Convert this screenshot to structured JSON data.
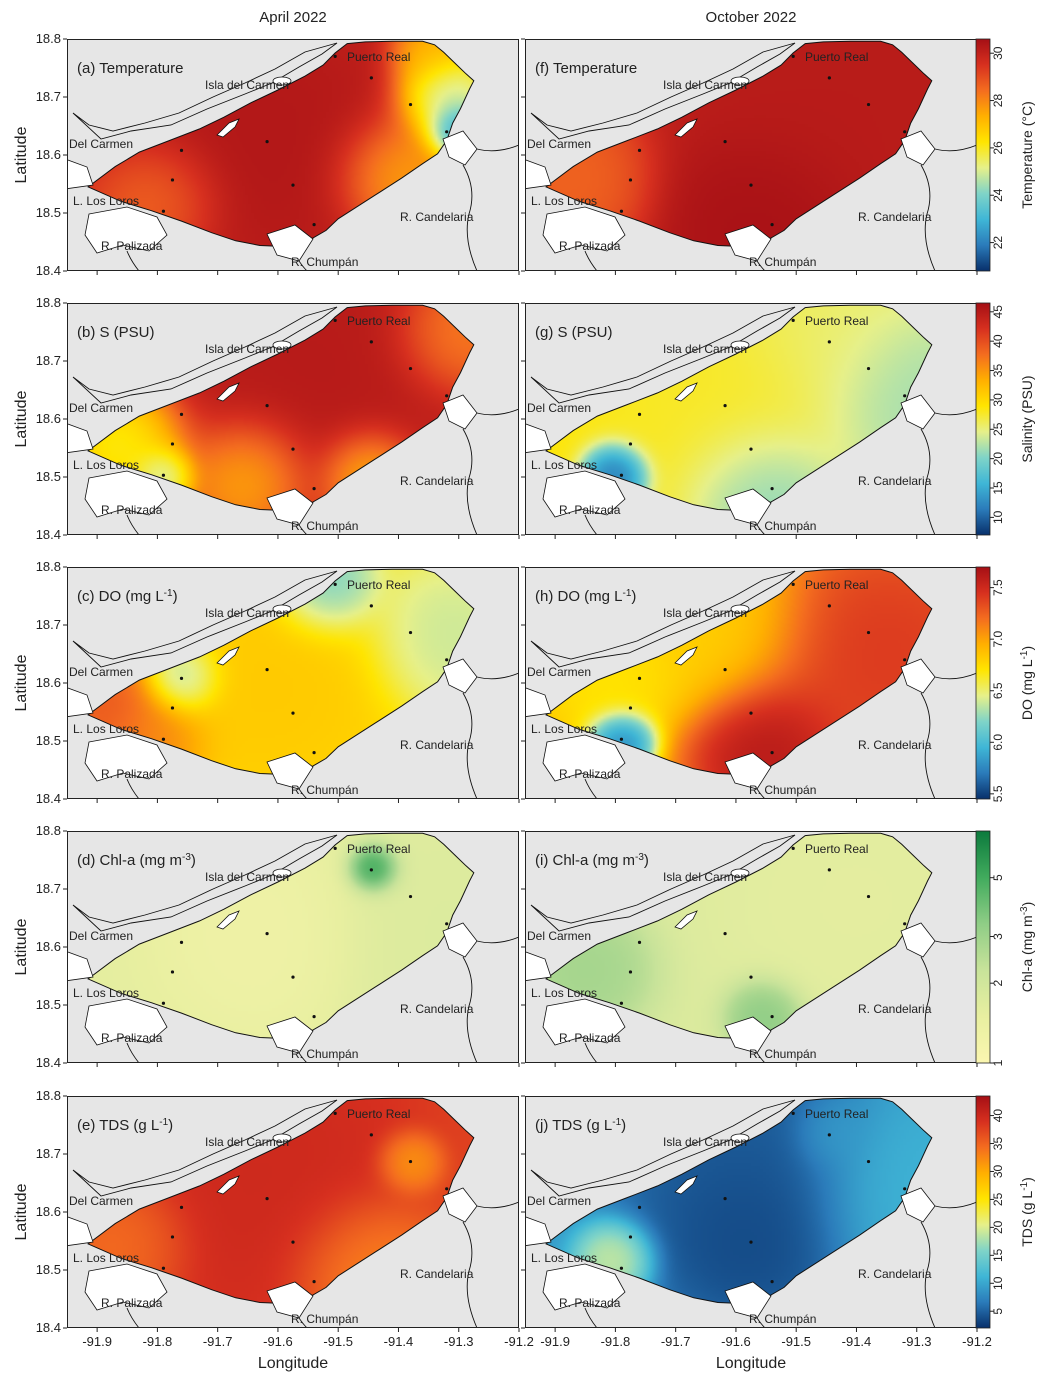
{
  "columns": [
    "April 2022",
    "October 2022"
  ],
  "axes": {
    "xlabel": "Longitude",
    "ylabel": "Latitude",
    "lon_ticks": [
      "-91.9",
      "-91.8",
      "-91.7",
      "-91.6",
      "-91.5",
      "-91.4",
      "-91.3",
      "-91.2"
    ],
    "lat_ticks": [
      "18.8",
      "18.7",
      "18.6",
      "18.5",
      "18.4"
    ]
  },
  "places": [
    "Puerto Real",
    "Isla del Carmen",
    "Del Carmen",
    "L. Los Loros",
    "R. Palizada",
    "R. Chumpán",
    "R. Candelaria"
  ],
  "rows": [
    {
      "variable": "Temperature",
      "panels": [
        {
          "prefix": "(a) ",
          "name": "Temperature",
          "sup": ""
        },
        {
          "prefix": "(f) ",
          "name": "Temperature",
          "sup": ""
        }
      ],
      "colorbar": {
        "label": "Temperature (°C)",
        "ticks": [
          "22",
          "24",
          "26",
          "28",
          "30"
        ],
        "min": 20.8,
        "max": 30.6,
        "palette": "spectral"
      }
    },
    {
      "variable": "Salinity",
      "panels": [
        {
          "prefix": "(b) ",
          "name": "S (PSU)",
          "sup": ""
        },
        {
          "prefix": "(g) ",
          "name": "S (PSU)",
          "sup": ""
        }
      ],
      "colorbar": {
        "label": "Salinity (PSU)",
        "ticks": [
          "10",
          "15",
          "20",
          "25",
          "30",
          "35",
          "40",
          "45"
        ],
        "min": 7,
        "max": 46.5,
        "palette": "spectral"
      }
    },
    {
      "variable": "DO",
      "panels": [
        {
          "prefix": "(c) ",
          "name": "DO (mg L",
          "sup": "-1",
          "suffix": ")"
        },
        {
          "prefix": "(h) ",
          "name": "DO (mg L",
          "sup": "-1",
          "suffix": ")"
        }
      ],
      "colorbar": {
        "label": "DO (mg L",
        "label_sup": "-1",
        "label_suffix": ")",
        "ticks": [
          "5.5",
          "6.0",
          "6.5",
          "7.0",
          "7.5"
        ],
        "min": 5.45,
        "max": 7.7,
        "palette": "spectral"
      }
    },
    {
      "variable": "Chl-a",
      "panels": [
        {
          "prefix": "(d) ",
          "name": "Chl-a (mg m",
          "sup": "-3",
          "suffix": ")"
        },
        {
          "prefix": "(i) ",
          "name": "Chl-a (mg m",
          "sup": "-3",
          "suffix": ")"
        }
      ],
      "colorbar": {
        "label": "Chl-a (mg m",
        "label_sup": "-3",
        "label_suffix": ")",
        "ticks": [
          "1",
          "2",
          "3",
          "5"
        ],
        "log": true,
        "min": 1,
        "max": 7.5,
        "palette": "green"
      }
    },
    {
      "variable": "TDS",
      "panels": [
        {
          "prefix": "(e) ",
          "name": "TDS (g L",
          "sup": "-1",
          "suffix": ")"
        },
        {
          "prefix": "(j) ",
          "name": "TDS (g L",
          "sup": "-1",
          "suffix": ")"
        }
      ],
      "colorbar": {
        "label": "TDS (g L",
        "label_sup": "-1",
        "label_suffix": ")",
        "ticks": [
          "5",
          "10",
          "15",
          "20",
          "25",
          "30",
          "35",
          "40"
        ],
        "min": 2,
        "max": 43.5,
        "palette": "spectral"
      }
    }
  ],
  "colors": {
    "land": "#e6e6e6",
    "spectral": [
      "#08306b",
      "#2b7bba",
      "#3fb6d6",
      "#7fd4c8",
      "#e6f08a",
      "#ffe500",
      "#ffb000",
      "#f46d1f",
      "#d7301f",
      "#a50f15"
    ],
    "green": [
      "#fbf6b0",
      "#e8efa0",
      "#c8e39a",
      "#8fcd86",
      "#41ab5d",
      "#0c7a3d"
    ]
  }
}
